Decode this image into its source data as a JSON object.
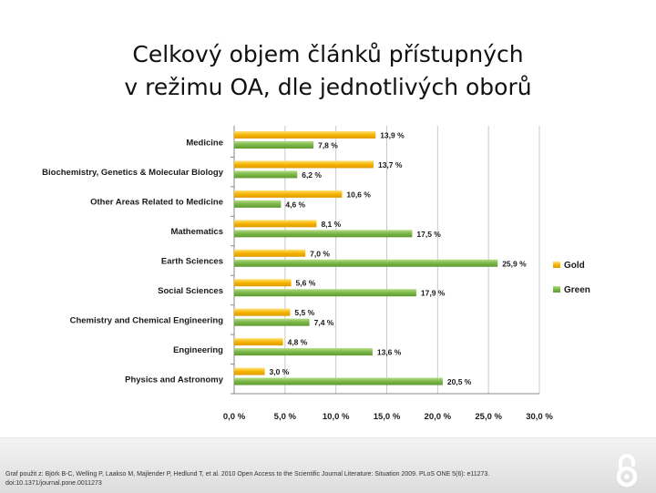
{
  "slide": {
    "title_line1": "Celkový objem článků přístupných",
    "title_line2": "v režimu OA, dle jednotlivých oborů"
  },
  "caption": {
    "line1": "Graf použit z: Björk B-C, Welling P, Laakso M, Majlender P, Hedlund T, et al. 2010 Open Access to the Scientific Journal Literature: Situation 2009. PLoS ONE 5(6): e11273.",
    "line2": "doi:10.1371/journal.pone.0011273"
  },
  "colors": {
    "gold": "#f5b400",
    "green": "#7ab648",
    "gold_light": "#ffe27a",
    "green_light": "#b4dc84"
  },
  "chart_data": {
    "type": "bar",
    "orientation": "horizontal",
    "categories": [
      "Medicine",
      "Biochemistry, Genetics & Molecular Biology",
      "Other Areas Related to Medicine",
      "Mathematics",
      "Earth Sciences",
      "Social Sciences",
      "Chemistry and Chemical Engineering",
      "Engineering",
      "Physics and Astronomy"
    ],
    "series": [
      {
        "name": "Gold",
        "values": [
          13.9,
          13.7,
          10.6,
          8.1,
          7.0,
          5.6,
          5.5,
          4.8,
          3.0
        ],
        "labels": [
          "13,9 %",
          "13,7 %",
          "10,6 %",
          "8,1 %",
          "7,0 %",
          "5,6 %",
          "5,5 %",
          "4,8 %",
          "3,0 %"
        ]
      },
      {
        "name": "Green",
        "values": [
          7.8,
          6.2,
          4.6,
          17.5,
          25.9,
          17.9,
          7.4,
          13.6,
          20.5
        ],
        "labels": [
          "7,8 %",
          "6,2 %",
          "4,6 %",
          "17,5 %",
          "25,9 %",
          "17,9 %",
          "7,4 %",
          "13,6 %",
          "20,5 %"
        ]
      }
    ],
    "x_ticks": [
      0,
      5,
      10,
      15,
      20,
      25,
      30
    ],
    "x_tick_labels": [
      "0,0 %",
      "5,0 %",
      "10,0 %",
      "15,0 %",
      "20,0 %",
      "25,0 %",
      "30,0 %"
    ],
    "xlim": [
      0,
      30
    ],
    "grid": true,
    "legend": "right"
  }
}
